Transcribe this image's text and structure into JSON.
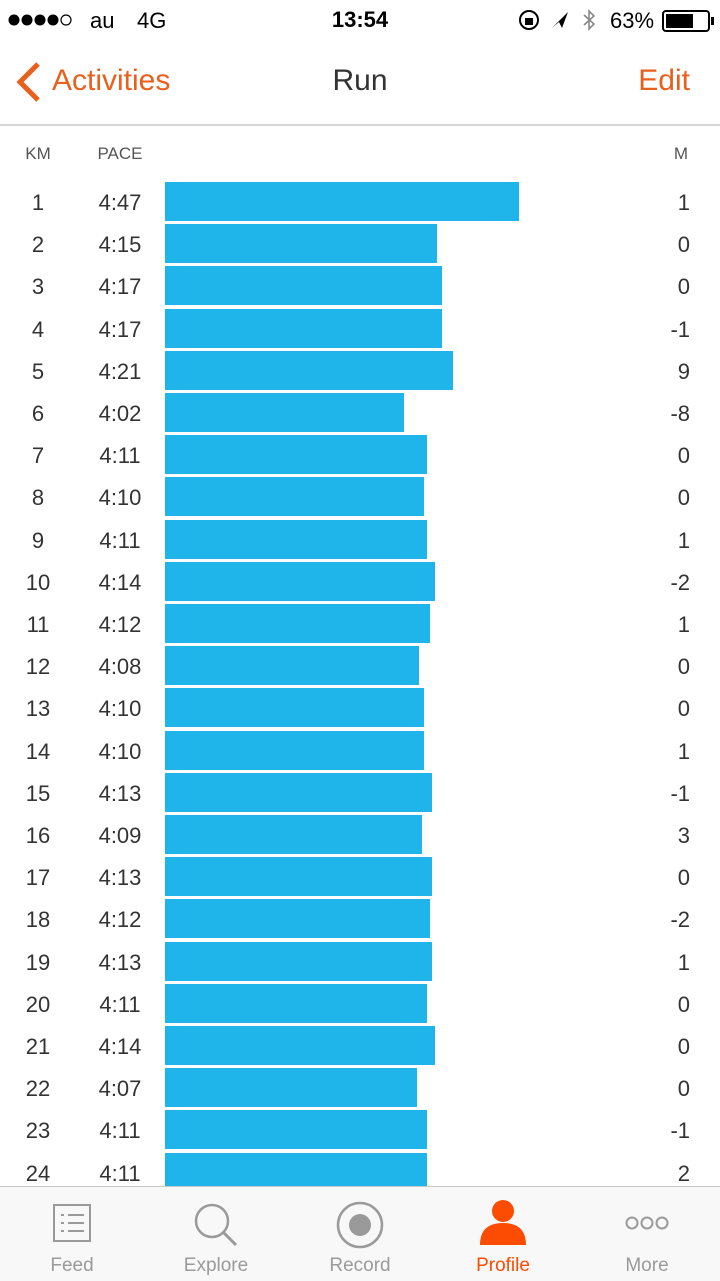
{
  "status_bar": {
    "carrier": "au",
    "network": "4G",
    "time": "13:54",
    "battery": "63%"
  },
  "nav": {
    "back": "Activities",
    "title": "Run",
    "action": "Edit"
  },
  "columns": {
    "km": "KM",
    "pace": "PACE",
    "elevation": "M"
  },
  "splits": [
    {
      "km": 1,
      "pace": {
        "value": 287,
        "label": "4:47"
      },
      "elevation": 1
    },
    {
      "km": 2,
      "pace": {
        "value": 255,
        "label": "4:15"
      },
      "elevation": 0
    },
    {
      "km": 3,
      "pace": {
        "value": 257,
        "label": "4:17"
      },
      "elevation": 0
    },
    {
      "km": 4,
      "pace": {
        "value": 257,
        "label": "4:17"
      },
      "elevation": -1
    },
    {
      "km": 5,
      "pace": {
        "value": 261,
        "label": "4:21"
      },
      "elevation": 9
    },
    {
      "km": 6,
      "pace": {
        "value": 242,
        "label": "4:02"
      },
      "elevation": -8
    },
    {
      "km": 7,
      "pace": {
        "value": 251,
        "label": "4:11"
      },
      "elevation": 0
    },
    {
      "km": 8,
      "pace": {
        "value": 250,
        "label": "4:10"
      },
      "elevation": 0
    },
    {
      "km": 9,
      "pace": {
        "value": 251,
        "label": "4:11"
      },
      "elevation": 1
    },
    {
      "km": 10,
      "pace": {
        "value": 254,
        "label": "4:14"
      },
      "elevation": -2
    },
    {
      "km": 11,
      "pace": {
        "value": 252,
        "label": "4:12"
      },
      "elevation": 1
    },
    {
      "km": 12,
      "pace": {
        "value": 248,
        "label": "4:08"
      },
      "elevation": 0
    },
    {
      "km": 13,
      "pace": {
        "value": 250,
        "label": "4:10"
      },
      "elevation": 0
    },
    {
      "km": 14,
      "pace": {
        "value": 250,
        "label": "4:10"
      },
      "elevation": 1
    },
    {
      "km": 15,
      "pace": {
        "value": 253,
        "label": "4:13"
      },
      "elevation": -1
    },
    {
      "km": 16,
      "pace": {
        "value": 249,
        "label": "4:09"
      },
      "elevation": 3
    },
    {
      "km": 17,
      "pace": {
        "value": 253,
        "label": "4:13"
      },
      "elevation": 0
    },
    {
      "km": 18,
      "pace": {
        "value": 252,
        "label": "4:12"
      },
      "elevation": -2
    },
    {
      "km": 19,
      "pace": {
        "value": 253,
        "label": "4:13"
      },
      "elevation": 1
    },
    {
      "km": 20,
      "pace": {
        "value": 251,
        "label": "4:11"
      },
      "elevation": 0
    },
    {
      "km": 21,
      "pace": {
        "value": 254,
        "label": "4:14"
      },
      "elevation": 0
    },
    {
      "km": 22,
      "pace": {
        "value": 247,
        "label": "4:07"
      },
      "elevation": 0
    },
    {
      "km": 23,
      "pace": {
        "value": 251,
        "label": "4:11"
      },
      "elevation": -1
    },
    {
      "km": 24,
      "pace": {
        "value": 251,
        "label": "4:11"
      },
      "elevation": 2
    }
  ],
  "tabs": [
    "Feed",
    "Explore",
    "Record",
    "Profile",
    "More"
  ]
}
